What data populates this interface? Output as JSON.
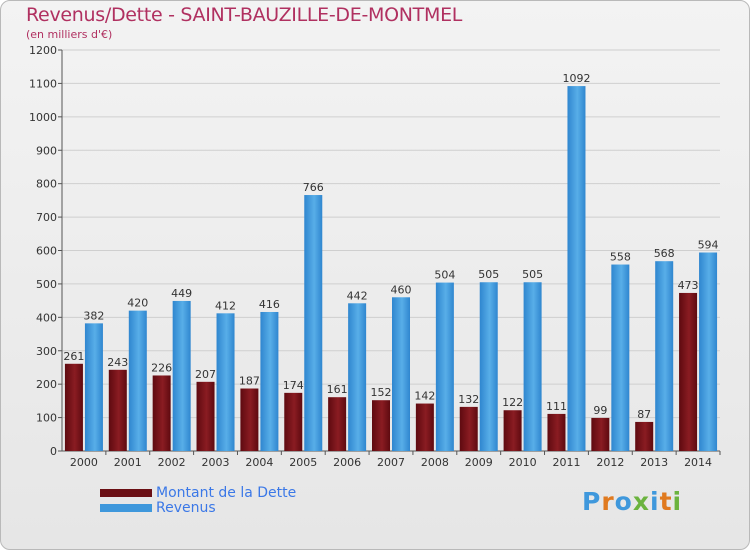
{
  "header": {
    "title": "Revenus/Dette - SAINT-BAUZILLE-DE-MONTMEL",
    "subtitle": "(en milliers d'€)"
  },
  "colors": {
    "dette": "#7a1218",
    "revenus": "#3f98dc",
    "title": "#b03060",
    "legend_text": "#3b78e7"
  },
  "legend": {
    "items": [
      {
        "label": "Montant de la Dette",
        "color": "#6b0f14"
      },
      {
        "label": "Revenus",
        "color": "#3f98dc"
      }
    ]
  },
  "logo": {
    "text": "Proxiti"
  },
  "chart_data": {
    "type": "bar",
    "title": "Revenus/Dette - SAINT-BAUZILLE-DE-MONTMEL",
    "subtitle": "(en milliers d'€)",
    "categories": [
      "2000",
      "2001",
      "2002",
      "2003",
      "2004",
      "2005",
      "2006",
      "2007",
      "2008",
      "2009",
      "2010",
      "2011",
      "2012",
      "2013",
      "2014"
    ],
    "series": [
      {
        "name": "Montant de la Dette",
        "values": [
          261,
          243,
          226,
          207,
          187,
          174,
          161,
          152,
          142,
          132,
          122,
          111,
          99,
          87,
          473
        ],
        "labels": [
          "261",
          "243",
          "226",
          "207",
          "187",
          "174",
          "161",
          "152",
          "142",
          "132",
          "122",
          "111",
          "99",
          "87",
          "473"
        ]
      },
      {
        "name": "Revenus",
        "values": [
          382,
          420,
          449,
          412,
          416,
          766,
          442,
          460,
          504,
          505,
          505,
          1092,
          558,
          568,
          594
        ],
        "labels": [
          "382",
          "420",
          "449",
          "412",
          "416",
          "766",
          "442",
          "460",
          "504",
          "505",
          "505",
          "1092",
          "558",
          "568",
          "594"
        ]
      }
    ],
    "ylim": [
      0,
      1200
    ],
    "yticks": [
      0,
      100,
      200,
      300,
      400,
      500,
      600,
      700,
      800,
      900,
      1000,
      1100,
      1200
    ],
    "ytick_labels": [
      "0",
      "100",
      "200",
      "300",
      "400",
      "500",
      "600",
      "700",
      "800",
      "900",
      "1000",
      "1100",
      "1200"
    ],
    "grid": true,
    "legend_position": "bottom-left"
  }
}
